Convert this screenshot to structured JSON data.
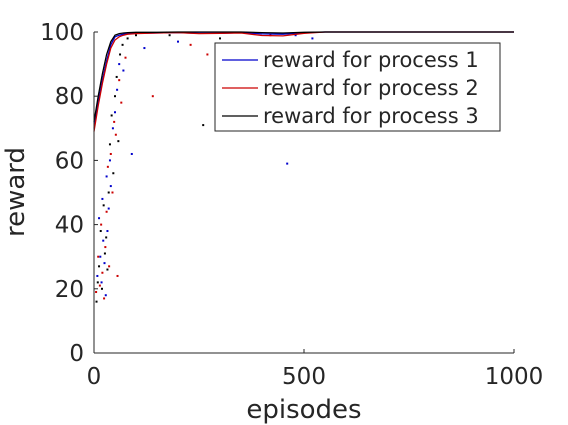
{
  "chart_data": {
    "type": "line",
    "xlabel": "episodes",
    "ylabel": "reward",
    "xlim": [
      0,
      1000
    ],
    "ylim": [
      0,
      100
    ],
    "x_ticks": [
      0,
      500,
      1000
    ],
    "y_ticks": [
      0,
      20,
      40,
      60,
      80,
      100
    ],
    "grid": false,
    "legend_position": "top-right",
    "series": [
      {
        "name": "reward for process 1",
        "color": "#0000cc",
        "x": [
          0,
          10,
          20,
          30,
          40,
          50,
          60,
          70,
          80,
          100,
          150,
          200,
          250,
          300,
          350,
          400,
          450,
          500,
          550
        ],
        "values": [
          70,
          78,
          85,
          91,
          96,
          98.5,
          99,
          99.3,
          99.5,
          99.6,
          99.7,
          99.8,
          99.6,
          99.6,
          99.8,
          99.4,
          99.3,
          99.8,
          100
        ]
      },
      {
        "name": "reward for process 2",
        "color": "#cc0000",
        "x": [
          0,
          10,
          20,
          30,
          40,
          50,
          60,
          70,
          80,
          100,
          150,
          200,
          250,
          300,
          350,
          400,
          450,
          500,
          550
        ],
        "values": [
          69,
          77,
          84,
          90,
          95,
          97.5,
          98.5,
          99,
          99.3,
          99.5,
          99.7,
          99.8,
          99.5,
          99.6,
          99.7,
          98.9,
          98.8,
          99.6,
          100
        ]
      },
      {
        "name": "reward for process 3",
        "color": "#000000",
        "x": [
          0,
          10,
          20,
          30,
          40,
          50,
          60,
          70,
          80,
          100,
          150,
          200,
          250,
          300,
          350,
          400,
          450,
          500,
          550
        ],
        "values": [
          72,
          80,
          87,
          93,
          97,
          99,
          99.5,
          99.7,
          99.8,
          99.9,
          99.9,
          100,
          100,
          100,
          100,
          99.8,
          99.7,
          99.9,
          100
        ]
      }
    ],
    "scatter": [
      {
        "color": "#0000cc",
        "points": [
          [
            8,
            24
          ],
          [
            12,
            42
          ],
          [
            15,
            30
          ],
          [
            18,
            22
          ],
          [
            20,
            48
          ],
          [
            22,
            35
          ],
          [
            25,
            28
          ],
          [
            28,
            18
          ],
          [
            30,
            55
          ],
          [
            32,
            38
          ],
          [
            35,
            45
          ],
          [
            38,
            60
          ],
          [
            40,
            52
          ],
          [
            45,
            70
          ],
          [
            50,
            75
          ],
          [
            55,
            82
          ],
          [
            60,
            90
          ],
          [
            70,
            88
          ],
          [
            90,
            62
          ],
          [
            120,
            95
          ],
          [
            200,
            97
          ],
          [
            460,
            59
          ],
          [
            480,
            99
          ],
          [
            520,
            98
          ]
        ]
      },
      {
        "color": "#cc0000",
        "points": [
          [
            5,
            19
          ],
          [
            10,
            30
          ],
          [
            14,
            21
          ],
          [
            17,
            40
          ],
          [
            20,
            25
          ],
          [
            24,
            17
          ],
          [
            27,
            33
          ],
          [
            30,
            44
          ],
          [
            33,
            58
          ],
          [
            36,
            27
          ],
          [
            40,
            62
          ],
          [
            44,
            50
          ],
          [
            48,
            72
          ],
          [
            52,
            68
          ],
          [
            56,
            24
          ],
          [
            60,
            85
          ],
          [
            65,
            78
          ],
          [
            75,
            92
          ],
          [
            140,
            80
          ],
          [
            230,
            96
          ],
          [
            270,
            93
          ],
          [
            420,
            99
          ]
        ]
      },
      {
        "color": "#000000",
        "points": [
          [
            6,
            16
          ],
          [
            9,
            22
          ],
          [
            12,
            27
          ],
          [
            16,
            38
          ],
          [
            19,
            20
          ],
          [
            23,
            46
          ],
          [
            26,
            31
          ],
          [
            29,
            36
          ],
          [
            32,
            26
          ],
          [
            35,
            50
          ],
          [
            38,
            65
          ],
          [
            42,
            74
          ],
          [
            46,
            56
          ],
          [
            50,
            80
          ],
          [
            54,
            86
          ],
          [
            58,
            66
          ],
          [
            62,
            93
          ],
          [
            68,
            96
          ],
          [
            80,
            98
          ],
          [
            100,
            99
          ],
          [
            180,
            99
          ],
          [
            260,
            71
          ],
          [
            300,
            98
          ]
        ]
      }
    ]
  }
}
